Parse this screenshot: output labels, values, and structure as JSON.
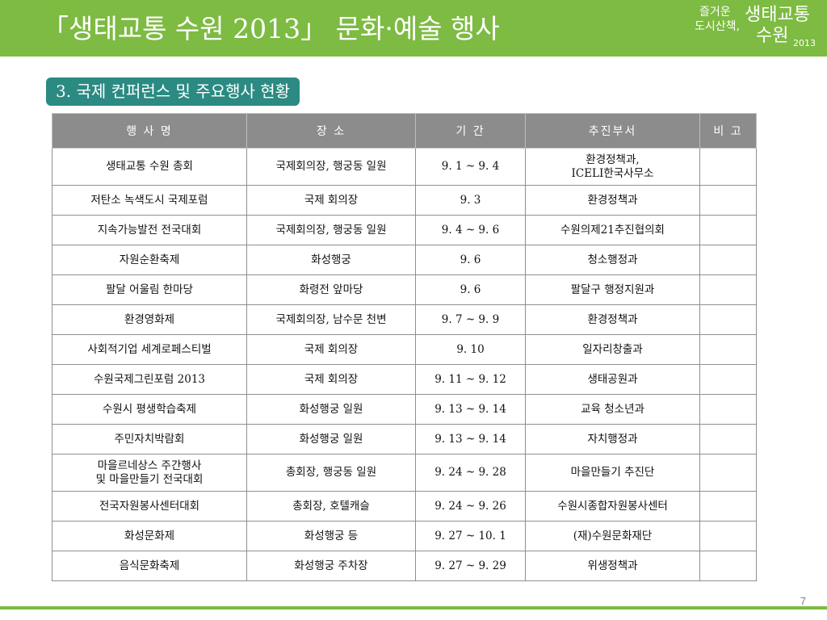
{
  "header": {
    "title": "「생태교통 수원 2013」 문화·예술 행사",
    "logo": {
      "line1": "즐거운",
      "line2": "도시산책,",
      "main1": "생태교통",
      "main2": "수원",
      "year": "2013"
    }
  },
  "section": {
    "label": "3. 국제 컨퍼런스 및 주요행사 현황"
  },
  "table": {
    "headers": [
      "행 사 명",
      "장 소",
      "기 간",
      "추진부서",
      "비 고"
    ],
    "rows": [
      [
        "생태교통 수원 총회",
        "국제회의장, 행궁동 일원",
        "9. 1 ~ 9. 4",
        "환경정책과,\nICELI한국사무소",
        ""
      ],
      [
        "저탄소 녹색도시 국제포럼",
        "국제 회의장",
        "9. 3",
        "환경정책과",
        ""
      ],
      [
        "지속가능발전 전국대회",
        "국제회의장, 행궁동 일원",
        "9. 4 ~ 9. 6",
        "수원의제21추진협의회",
        ""
      ],
      [
        "자원순환축제",
        "화성행궁",
        "9. 6",
        "청소행정과",
        ""
      ],
      [
        "팔달 어울림 한마당",
        "화령전 앞마당",
        "9. 6",
        "팔달구 행정지원과",
        ""
      ],
      [
        "환경영화제",
        "국제회의장, 남수문 천변",
        "9. 7 ~ 9. 9",
        "환경정책과",
        ""
      ],
      [
        "사회적기업 세계로페스티벌",
        "국제 회의장",
        "9. 10",
        "일자리창출과",
        ""
      ],
      [
        "수원국제그린포럼 2013",
        "국제 회의장",
        "9. 11 ~ 9. 12",
        "생태공원과",
        ""
      ],
      [
        "수원시 평생학습축제",
        "화성행궁 일원",
        "9. 13 ~ 9. 14",
        "교육 청소년과",
        ""
      ],
      [
        "주민자치박람회",
        "화성행궁 일원",
        "9. 13 ~ 9. 14",
        "자치행정과",
        ""
      ],
      [
        "마을르네상스 주간행사\n및 마을만들기 전국대회",
        "총회장, 행궁동 일원",
        "9. 24 ~ 9. 28",
        "마을만들기 추진단",
        ""
      ],
      [
        "전국자원봉사센터대회",
        "총회장, 호텔캐슬",
        "9. 24 ~ 9. 26",
        "수원시종합자원봉사센터",
        ""
      ],
      [
        "화성문화제",
        "화성행궁 등",
        "9. 27 ~ 10. 1",
        "(재)수원문화재단",
        ""
      ],
      [
        "음식문화축제",
        "화성행궁 주차장",
        "9. 27 ~ 9. 29",
        "위생정책과",
        ""
      ]
    ]
  },
  "footer": {
    "page_number": "7"
  },
  "colors": {
    "accent_green": "#7dbb42",
    "badge_teal": "#2b8a82",
    "header_gray": "#8c8c8c"
  }
}
